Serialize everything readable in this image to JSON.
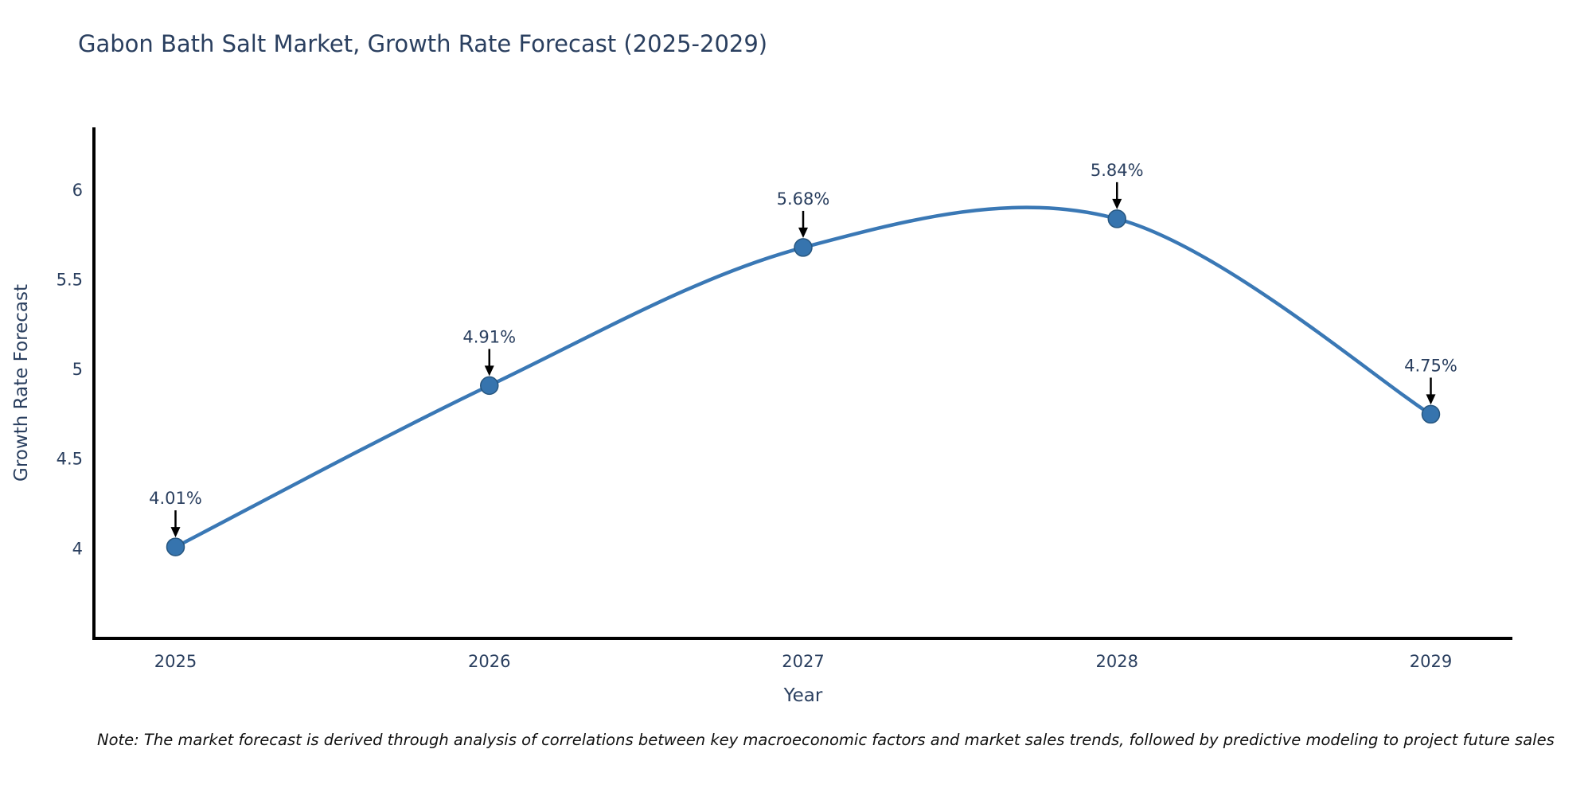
{
  "page": {
    "note": "Note: The market forecast is derived through analysis of correlations between key macroeconomic factors and market sales trends, followed by predictive modeling to project future sales"
  },
  "chart_data": {
    "type": "line",
    "line_shape": "spline",
    "title": "Gabon Bath Salt Market, Growth Rate Forecast (2025-2029)",
    "xlabel": "Year",
    "ylabel": "Growth Rate Forecast",
    "x": [
      2025,
      2026,
      2027,
      2028,
      2029
    ],
    "values": [
      4.01,
      4.91,
      5.68,
      5.84,
      4.75
    ],
    "point_labels": [
      "4.01%",
      "4.91%",
      "5.68%",
      "5.84%",
      "4.75%"
    ],
    "xticks": [
      2025,
      2026,
      2027,
      2028,
      2029
    ],
    "xtick_labels": [
      "2025",
      "2026",
      "2027",
      "2028",
      "2029"
    ],
    "yticks": [
      4,
      4.5,
      5,
      5.5,
      6
    ],
    "ytick_labels": [
      "4",
      "4.5",
      "5",
      "5.5",
      "6"
    ],
    "xlim": [
      2024.74,
      2029.26
    ],
    "ylim": [
      3.5,
      6.35
    ],
    "grid": false,
    "legend": "none",
    "annotations_style": "value label above point with downward black arrow",
    "colors": {
      "line": "#3a78b5",
      "marker": "#3674ae",
      "marker_edge": "#27567f",
      "axis": "#000000",
      "text": "#2a3f5f",
      "annotation_arrow": "#000000",
      "background": "#ffffff"
    }
  }
}
